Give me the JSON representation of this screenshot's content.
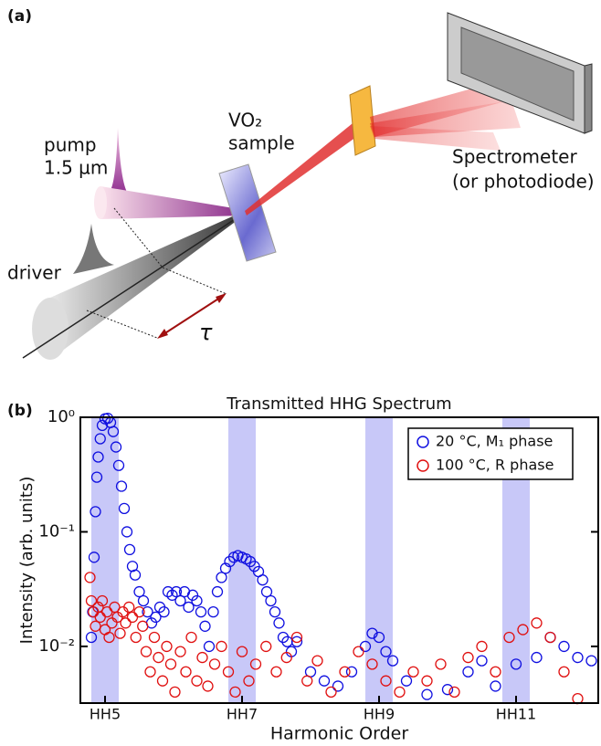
{
  "panel_a": {
    "label": "(a)",
    "pump": "pump",
    "wavelength": "1.5 µm",
    "sample_1": "VO₂",
    "sample_2": "sample",
    "detector_1": "Spectrometer",
    "detector_2": "(or photodiode)",
    "driver": "driver",
    "delay": "τ"
  },
  "panel_b": {
    "label": "(b)"
  },
  "chart_data": {
    "type": "scatter",
    "title": "Transmitted HHG Spectrum",
    "x_label": "Harmonic Order",
    "y_label": "Intensity (arb. units)",
    "xlim": [
      4.64,
      12.2
    ],
    "xticks": [
      {
        "value": 5,
        "label": "HH5"
      },
      {
        "value": 7,
        "label": "HH7"
      },
      {
        "value": 9,
        "label": "HH9"
      },
      {
        "value": 11,
        "label": "HH11"
      }
    ],
    "ylim": [
      0.0032,
      1
    ],
    "yticks": [
      {
        "value": 1,
        "label": "10⁰"
      },
      {
        "value": 0.1,
        "label": "10⁻¹"
      },
      {
        "value": 0.01,
        "label": "10⁻²"
      }
    ],
    "log_y": true,
    "bands": [
      [
        4.8,
        5.2
      ],
      [
        6.8,
        7.2
      ],
      [
        8.8,
        9.2
      ],
      [
        10.8,
        11.2
      ]
    ],
    "band_color": "#c8c8f8",
    "legend": "upper right",
    "series": [
      {
        "name": "20 °C, M₁ phase",
        "color": "#1010e0",
        "x": [
          4.8,
          4.82,
          4.84,
          4.86,
          4.88,
          4.9,
          4.93,
          4.96,
          5.0,
          5.04,
          5.08,
          5.12,
          5.16,
          5.2,
          5.24,
          5.28,
          5.32,
          5.36,
          5.4,
          5.44,
          5.5,
          5.56,
          5.62,
          5.68,
          5.74,
          5.8,
          5.86,
          5.92,
          5.98,
          6.04,
          6.1,
          6.16,
          6.22,
          6.28,
          6.34,
          6.4,
          6.46,
          6.52,
          6.58,
          6.64,
          6.7,
          6.76,
          6.82,
          6.88,
          6.94,
          7.0,
          7.06,
          7.12,
          7.18,
          7.24,
          7.3,
          7.36,
          7.42,
          7.48,
          7.54,
          7.6,
          7.66,
          7.72,
          7.8,
          8.0,
          8.2,
          8.4,
          8.6,
          8.8,
          8.9,
          9.0,
          9.1,
          9.2,
          9.4,
          9.7,
          10.0,
          10.3,
          10.5,
          10.7,
          11.0,
          11.3,
          11.5,
          11.7,
          11.9,
          12.1
        ],
        "values": [
          0.012,
          0.02,
          0.06,
          0.15,
          0.3,
          0.45,
          0.65,
          0.85,
          0.97,
          0.98,
          0.9,
          0.75,
          0.55,
          0.38,
          0.25,
          0.16,
          0.1,
          0.07,
          0.05,
          0.042,
          0.03,
          0.025,
          0.02,
          0.016,
          0.018,
          0.022,
          0.02,
          0.03,
          0.028,
          0.03,
          0.025,
          0.03,
          0.022,
          0.028,
          0.025,
          0.02,
          0.015,
          0.01,
          0.02,
          0.03,
          0.04,
          0.048,
          0.055,
          0.06,
          0.062,
          0.06,
          0.058,
          0.055,
          0.05,
          0.045,
          0.038,
          0.03,
          0.025,
          0.02,
          0.016,
          0.012,
          0.011,
          0.009,
          0.011,
          0.006,
          0.005,
          0.0045,
          0.006,
          0.01,
          0.013,
          0.012,
          0.009,
          0.0075,
          0.005,
          0.0038,
          0.0042,
          0.006,
          0.0075,
          0.0045,
          0.007,
          0.008,
          0.012,
          0.01,
          0.008,
          0.0075
        ]
      },
      {
        "name": "100 °C, R phase",
        "color": "#e01010",
        "x": [
          4.78,
          4.8,
          4.83,
          4.86,
          4.9,
          4.93,
          4.96,
          5.0,
          5.03,
          5.06,
          5.1,
          5.14,
          5.18,
          5.22,
          5.26,
          5.3,
          5.35,
          5.4,
          5.45,
          5.5,
          5.55,
          5.6,
          5.66,
          5.72,
          5.78,
          5.84,
          5.9,
          5.96,
          6.02,
          6.1,
          6.18,
          6.26,
          6.34,
          6.42,
          6.5,
          6.6,
          6.7,
          6.8,
          6.9,
          7.0,
          7.1,
          7.2,
          7.35,
          7.5,
          7.65,
          7.8,
          7.95,
          8.1,
          8.3,
          8.5,
          8.7,
          8.9,
          9.1,
          9.3,
          9.5,
          9.7,
          9.9,
          10.1,
          10.3,
          10.5,
          10.7,
          10.9,
          11.1,
          11.3,
          11.5,
          11.7,
          11.9
        ],
        "values": [
          0.04,
          0.025,
          0.02,
          0.015,
          0.022,
          0.018,
          0.025,
          0.014,
          0.02,
          0.012,
          0.016,
          0.022,
          0.018,
          0.013,
          0.02,
          0.016,
          0.022,
          0.018,
          0.012,
          0.02,
          0.015,
          0.009,
          0.006,
          0.012,
          0.008,
          0.005,
          0.01,
          0.007,
          0.004,
          0.009,
          0.006,
          0.012,
          0.005,
          0.008,
          0.0045,
          0.007,
          0.01,
          0.006,
          0.004,
          0.009,
          0.005,
          0.007,
          0.01,
          0.006,
          0.008,
          0.012,
          0.005,
          0.0075,
          0.004,
          0.006,
          0.009,
          0.007,
          0.005,
          0.004,
          0.006,
          0.005,
          0.007,
          0.004,
          0.008,
          0.01,
          0.006,
          0.012,
          0.014,
          0.016,
          0.012,
          0.006,
          0.0035
        ]
      }
    ]
  }
}
